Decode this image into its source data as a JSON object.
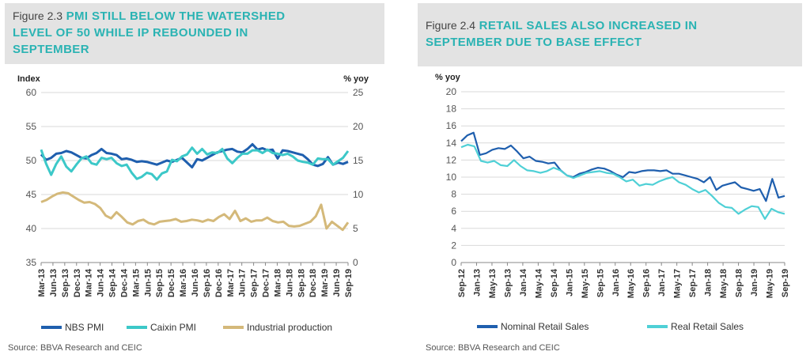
{
  "chart_data": [
    {
      "id": "fig23",
      "type": "line",
      "figure_number": "Figure 2.3",
      "title_lines": [
        "PMI STILL BELOW THE WATERSHED",
        "LEVEL OF 50 WHILE IP REBOUNDED IN",
        "SEPTEMBER"
      ],
      "y_left_label": "Index",
      "y_right_label": "% yoy",
      "y_left_range": [
        35,
        60
      ],
      "y_left_ticks": [
        "35",
        "40",
        "45",
        "50",
        "55",
        "60"
      ],
      "y_right_range": [
        0,
        25
      ],
      "y_right_ticks": [
        "0",
        "5",
        "10",
        "15",
        "20",
        "25"
      ],
      "x_labels": [
        "Mar-13",
        "Jun-13",
        "Sep-13",
        "Dec-13",
        "Mar-14",
        "Jun-14",
        "Sep-14",
        "Dec-14",
        "Mar-15",
        "Jun-15",
        "Sep-15",
        "Dec-15",
        "Mar-16",
        "Jun-16",
        "Sep-16",
        "Dec-16",
        "Mar-17",
        "Jun-17",
        "Sep-17",
        "Dec-17",
        "Mar-18",
        "Jun-18",
        "Sep-18",
        "Dec-18",
        "Mar-19",
        "Jun-19",
        "Sep-19"
      ],
      "grid": true,
      "legend_position": "bottom",
      "series": [
        {
          "name": "NBS PMI",
          "axis": "left",
          "color": "#1f5fae",
          "values": [
            50.9,
            50.1,
            50.4,
            51.0,
            51.1,
            51.4,
            51.2,
            50.8,
            50.4,
            50.3,
            50.8,
            51.1,
            51.7,
            51.1,
            51.0,
            50.8,
            50.2,
            50.3,
            50.1,
            49.8,
            49.9,
            49.8,
            49.6,
            49.4,
            49.7,
            50.0,
            49.8,
            50.1,
            50.4,
            49.7,
            49.0,
            50.2,
            50.0,
            50.4,
            50.8,
            51.2,
            51.4,
            51.6,
            51.7,
            51.3,
            51.2,
            51.7,
            52.4,
            51.6,
            51.8,
            51.5,
            51.6,
            50.3,
            51.5,
            51.4,
            51.2,
            51.0,
            50.8,
            50.2,
            49.4,
            49.2,
            49.5,
            50.5,
            49.4,
            49.7,
            49.5,
            49.8
          ],
          "y_precise": []
        },
        {
          "name": "Caixin PMI",
          "axis": "left",
          "color": "#3cc8c8",
          "values": [
            51.6,
            49.5,
            47.9,
            49.5,
            50.6,
            49.1,
            48.4,
            49.4,
            50.3,
            50.6,
            49.6,
            49.4,
            50.4,
            50.2,
            50.4,
            49.6,
            49.2,
            49.4,
            48.2,
            47.3,
            47.6,
            48.2,
            48.0,
            47.2,
            48.1,
            48.4,
            50.1,
            49.9,
            50.6,
            50.9,
            51.9,
            51.0,
            51.7,
            50.9,
            51.2,
            51.1,
            51.7,
            50.3,
            49.6,
            50.4,
            51.0,
            51.0,
            51.5,
            51.5,
            51.1,
            51.6,
            51.1,
            51.0,
            50.8,
            51.0,
            50.6,
            50.0,
            49.8,
            49.7,
            49.4,
            50.3,
            50.2,
            50.2,
            49.4,
            49.9,
            50.4,
            51.4
          ],
          "y_precise": []
        },
        {
          "name": "Industrial production",
          "axis": "right",
          "color": "#d4b97a",
          "values": [
            8.9,
            9.2,
            9.7,
            10.1,
            10.3,
            10.2,
            9.7,
            9.2,
            8.8,
            8.9,
            8.6,
            8.0,
            6.9,
            6.5,
            7.4,
            6.7,
            5.9,
            5.6,
            6.1,
            6.3,
            5.8,
            5.6,
            6.0,
            6.1,
            6.2,
            6.4,
            6.0,
            6.1,
            6.3,
            6.2,
            6.0,
            6.3,
            6.1,
            6.7,
            7.1,
            6.4,
            7.6,
            6.1,
            6.5,
            6.0,
            6.2,
            6.2,
            6.6,
            6.1,
            5.9,
            6.0,
            5.4,
            5.3,
            5.4,
            5.7,
            6.0,
            6.8,
            8.5,
            5.0,
            6.0,
            5.4,
            4.8,
            5.9
          ],
          "y_precise": []
        }
      ],
      "source": "Source: BBVA Research and CEIC"
    },
    {
      "id": "fig24",
      "type": "line",
      "figure_number": "Figure 2.4",
      "title_lines": [
        "RETAIL SALES ALSO INCREASED IN",
        "SEPTEMBER DUE TO BASE EFFECT"
      ],
      "y_left_label": "% yoy",
      "y_left_range": [
        0,
        20
      ],
      "y_left_ticks": [
        "0",
        "2",
        "4",
        "6",
        "8",
        "10",
        "12",
        "14",
        "16",
        "18",
        "20"
      ],
      "x_labels": [
        "Sep-12",
        "Jan-13",
        "May-13",
        "Sep-13",
        "Jan-14",
        "May-14",
        "Sep-14",
        "Jan-15",
        "May-15",
        "Sep-15",
        "Jan-16",
        "May-16",
        "Sep-16",
        "Jan-17",
        "May-17",
        "Sep-17",
        "Jan-18",
        "May-18",
        "Sep-18",
        "Jan-19",
        "May-19",
        "Sep-19"
      ],
      "grid": true,
      "legend_position": "bottom",
      "series": [
        {
          "name": "Nominal Retail Sales",
          "color": "#1f5fae",
          "values": [
            14.2,
            14.9,
            15.2,
            12.6,
            12.8,
            13.2,
            13.4,
            13.3,
            13.7,
            13.0,
            12.2,
            12.4,
            11.9,
            11.8,
            11.6,
            11.7,
            10.8,
            10.2,
            10.0,
            10.4,
            10.6,
            10.9,
            11.1,
            11.0,
            10.7,
            10.3,
            10.0,
            10.6,
            10.5,
            10.7,
            10.8,
            10.8,
            10.7,
            10.8,
            10.4,
            10.4,
            10.2,
            10.0,
            9.8,
            9.4,
            10.0,
            8.5,
            9.0,
            9.2,
            9.4,
            8.8,
            8.6,
            8.4,
            8.6,
            7.2,
            9.8,
            7.6,
            7.8
          ],
          "y_precise": []
        },
        {
          "name": "Real Retail Sales",
          "color": "#4fd0d6",
          "values": [
            13.5,
            13.8,
            13.6,
            11.9,
            11.7,
            11.9,
            11.4,
            11.3,
            12.0,
            11.3,
            10.8,
            10.7,
            10.5,
            10.7,
            11.1,
            10.8,
            10.2,
            9.9,
            10.2,
            10.5,
            10.6,
            10.7,
            10.5,
            10.4,
            10.0,
            9.5,
            9.7,
            9.0,
            9.2,
            9.1,
            9.5,
            9.8,
            10.0,
            9.4,
            9.1,
            8.6,
            8.2,
            8.5,
            7.8,
            7.0,
            6.5,
            6.4,
            5.7,
            6.2,
            6.6,
            6.5,
            5.1,
            6.3,
            5.9,
            5.7
          ],
          "y_precise": []
        }
      ],
      "source": "Source: BBVA Research and CEIC"
    }
  ]
}
